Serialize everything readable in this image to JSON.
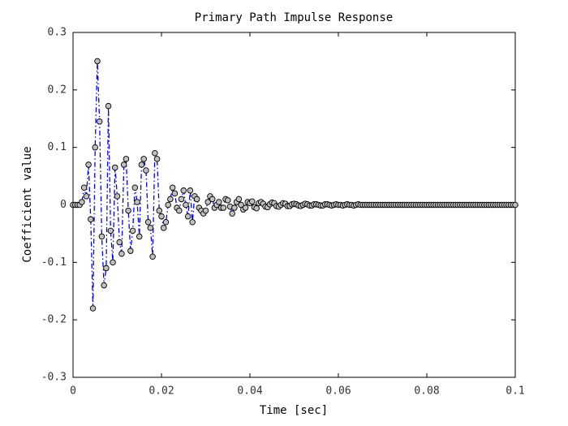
{
  "chart_data": {
    "type": "line",
    "title": "Primary Path Impulse Response",
    "xlabel": "Time [sec]",
    "ylabel": "Coefficient value",
    "color": "#0000ff",
    "line_style": "dash-dot",
    "marker": "circle",
    "marker_color": "#c0c0c0",
    "xlim": [
      0,
      0.1
    ],
    "xticks": [
      0,
      0.02,
      0.04,
      0.06,
      0.08,
      0.1
    ],
    "ylim": [
      -0.3,
      0.3
    ],
    "yticks": [
      0.3,
      0.2,
      0.1,
      0,
      -0.1,
      -0.2,
      -0.3
    ],
    "grid": false,
    "x": [
      0,
      0.0005,
      0.001,
      0.0015,
      0.002,
      0.0025,
      0.003,
      0.0035,
      0.004,
      0.0045,
      0.005,
      0.0055,
      0.006,
      0.0065,
      0.007,
      0.0075,
      0.008,
      0.0085,
      0.009,
      0.0095,
      0.01,
      0.0105,
      0.011,
      0.0115,
      0.012,
      0.0125,
      0.013,
      0.0135,
      0.014,
      0.0145,
      0.015,
      0.0155,
      0.016,
      0.0165,
      0.017,
      0.0175,
      0.018,
      0.0185,
      0.019,
      0.0195,
      0.02,
      0.0205,
      0.021,
      0.0215,
      0.022,
      0.0225,
      0.023,
      0.0235,
      0.024,
      0.0245,
      0.025,
      0.0255,
      0.026,
      0.0265,
      0.027,
      0.0275,
      0.028,
      0.0285,
      0.029,
      0.0295,
      0.03,
      0.0305,
      0.031,
      0.0315,
      0.032,
      0.0325,
      0.033,
      0.0335,
      0.034,
      0.0345,
      0.035,
      0.0355,
      0.036,
      0.0365,
      0.037,
      0.0375,
      0.038,
      0.0385,
      0.039,
      0.0395,
      0.04,
      0.0405,
      0.041,
      0.0415,
      0.042,
      0.0425,
      0.043,
      0.0435,
      0.044,
      0.0445,
      0.045,
      0.0455,
      0.046,
      0.0465,
      0.047,
      0.0475,
      0.048,
      0.0485,
      0.049,
      0.0495,
      0.05,
      0.0505,
      0.051,
      0.0515,
      0.052,
      0.0525,
      0.053,
      0.0535,
      0.054,
      0.0545,
      0.055,
      0.0555,
      0.056,
      0.0565,
      0.057,
      0.0575,
      0.058,
      0.0585,
      0.059,
      0.0595,
      0.06,
      0.0605,
      0.061,
      0.0615,
      0.062,
      0.0625,
      0.063,
      0.0635,
      0.064,
      0.0645,
      0.065,
      0.0655,
      0.066,
      0.0665,
      0.067,
      0.0675,
      0.068,
      0.0685,
      0.069,
      0.0695,
      0.07,
      0.0705,
      0.071,
      0.0715,
      0.072,
      0.0725,
      0.073,
      0.0735,
      0.074,
      0.0745,
      0.075,
      0.0755,
      0.076,
      0.0765,
      0.077,
      0.0775,
      0.078,
      0.0785,
      0.079,
      0.0795,
      0.08,
      0.0805,
      0.081,
      0.0815,
      0.082,
      0.0825,
      0.083,
      0.0835,
      0.084,
      0.0845,
      0.085,
      0.0855,
      0.086,
      0.0865,
      0.087,
      0.0875,
      0.088,
      0.0885,
      0.089,
      0.0895,
      0.09,
      0.0905,
      0.091,
      0.0915,
      0.092,
      0.0925,
      0.093,
      0.0935,
      0.094,
      0.0945,
      0.095,
      0.0955,
      0.096,
      0.0965,
      0.097,
      0.0975,
      0.098,
      0.0985,
      0.099,
      0.0995,
      0.1
    ],
    "values": [
      0,
      0,
      0,
      0,
      0.005,
      0.03,
      0.015,
      0.07,
      -0.025,
      -0.18,
      0.1,
      0.25,
      0.145,
      -0.055,
      -0.14,
      -0.11,
      0.172,
      -0.045,
      -0.1,
      0.065,
      0.015,
      -0.065,
      -0.085,
      0.07,
      0.08,
      -0.01,
      -0.08,
      -0.045,
      0.03,
      0.005,
      -0.055,
      0.07,
      0.08,
      0.06,
      -0.03,
      -0.04,
      -0.09,
      0.09,
      0.08,
      -0.01,
      -0.02,
      -0.04,
      -0.03,
      0,
      0.01,
      0.03,
      0.02,
      -0.005,
      -0.01,
      0.01,
      0.025,
      0,
      -0.02,
      0.025,
      -0.03,
      0.015,
      0.01,
      -0.005,
      -0.01,
      -0.015,
      -0.01,
      0.005,
      0.015,
      0.01,
      -0.005,
      0,
      0.005,
      -0.005,
      -0.005,
      0.01,
      0.008,
      -0.003,
      -0.015,
      -0.005,
      0.005,
      0.01,
      0,
      -0.008,
      -0.005,
      0.005,
      0.003,
      0.006,
      -0.004,
      -0.006,
      0.003,
      0.005,
      0.002,
      -0.003,
      -0.004,
      0.001,
      0.004,
      0.003,
      -0.002,
      -0.003,
      0,
      0.003,
      0.002,
      -0.002,
      -0.002,
      0.001,
      0.002,
      0.001,
      -0.001,
      -0.002,
      0,
      0.002,
      0.001,
      -0.001,
      -0.001,
      0.001,
      0.001,
      0,
      -0.001,
      -0.001,
      0.001,
      0.001,
      0,
      -0.001,
      0,
      0.001,
      0,
      0,
      -0.001,
      0,
      0.001,
      0,
      0,
      -0.001,
      0,
      0.001,
      0,
      0,
      0,
      0,
      0,
      0,
      0,
      0,
      0,
      0,
      0,
      0,
      0,
      0,
      0,
      0,
      0,
      0,
      0,
      0,
      0,
      0,
      0,
      0,
      0,
      0,
      0,
      0,
      0,
      0,
      0,
      0,
      0,
      0,
      0,
      0,
      0,
      0,
      0,
      0,
      0,
      0,
      0,
      0,
      0,
      0,
      0,
      0,
      0,
      0,
      0,
      0,
      0,
      0,
      0,
      0,
      0,
      0,
      0,
      0,
      0,
      0,
      0,
      0,
      0,
      0,
      0,
      0,
      0,
      0,
      0
    ]
  }
}
